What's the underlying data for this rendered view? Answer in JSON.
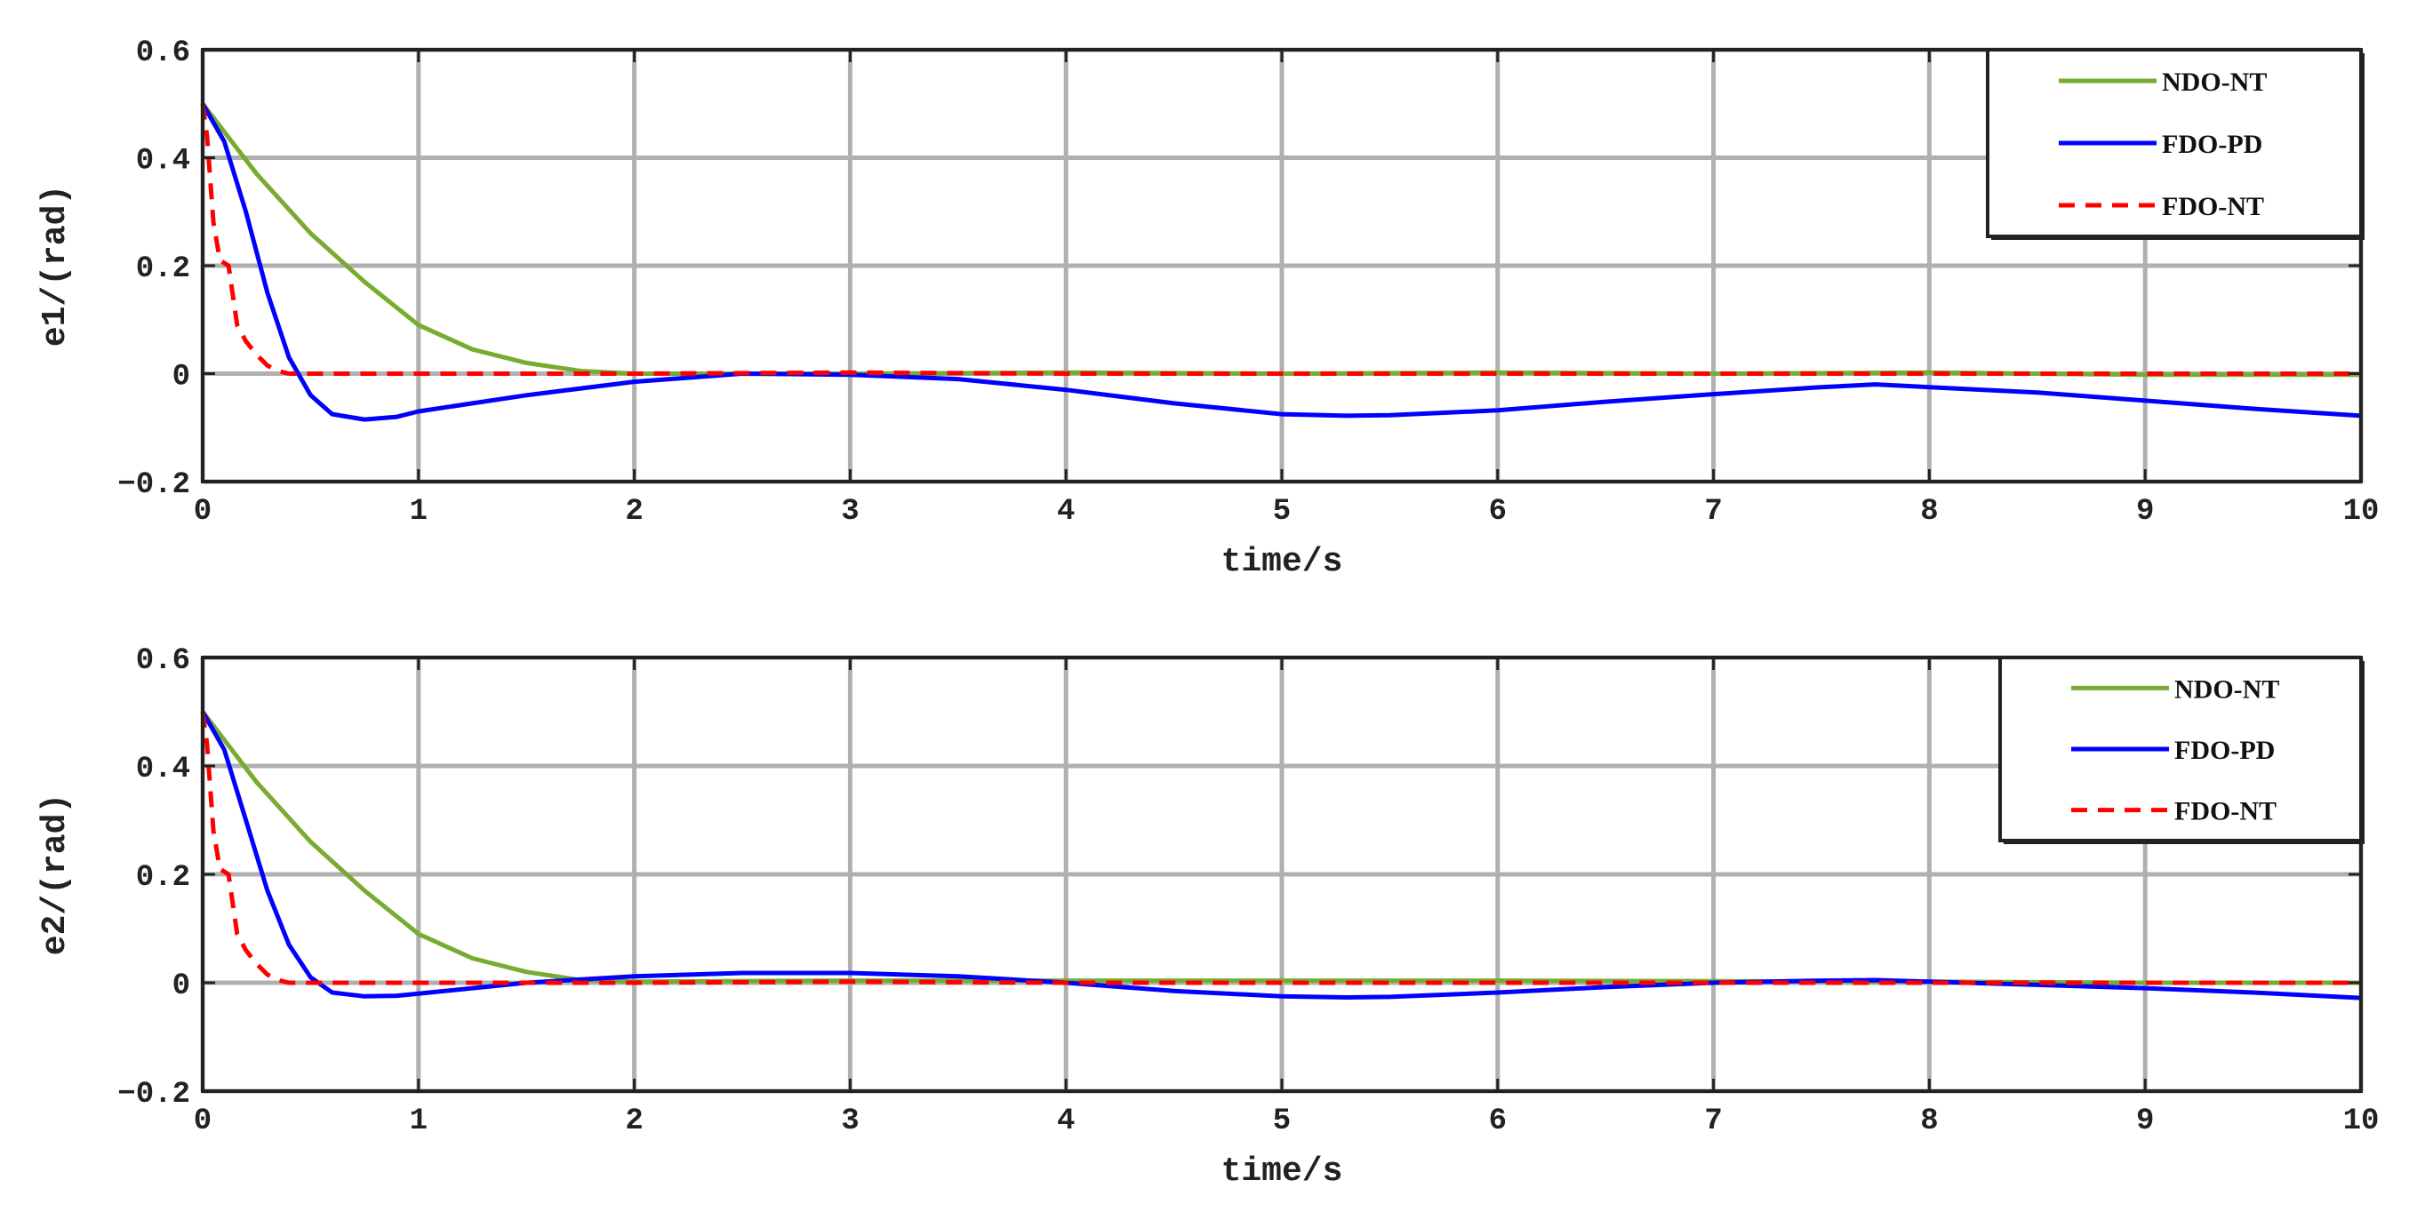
{
  "chart_data": [
    {
      "type": "line",
      "xlabel": "time/s",
      "ylabel": "e1/(rad)",
      "xlim": [
        0,
        10
      ],
      "ylim": [
        -0.2,
        0.6
      ],
      "x_ticks": [
        "0",
        "1",
        "2",
        "3",
        "4",
        "5",
        "6",
        "7",
        "8",
        "9",
        "10"
      ],
      "y_ticks": [
        "-0.2",
        "0",
        "0.2",
        "0.4",
        "0.6"
      ],
      "grid": "vertical and horizontal, gray",
      "legend_position": "top-right",
      "series": [
        {
          "name": "NDO-NT",
          "color": "#77ac30",
          "style": "solid",
          "x": [
            0,
            0.25,
            0.5,
            0.75,
            1.0,
            1.25,
            1.5,
            1.75,
            2.0,
            3.0,
            4.0,
            5.0,
            6.0,
            7.0,
            8.0,
            9.0,
            10.0
          ],
          "y": [
            0.5,
            0.37,
            0.26,
            0.17,
            0.09,
            0.045,
            0.02,
            0.005,
            0.0,
            0.0,
            0.002,
            0.0,
            0.002,
            0.0,
            0.002,
            -0.002,
            -0.002
          ]
        },
        {
          "name": "FDO-PD",
          "color": "#0000ff",
          "style": "solid",
          "x": [
            0,
            0.1,
            0.2,
            0.3,
            0.4,
            0.5,
            0.6,
            0.75,
            0.9,
            1.0,
            1.25,
            1.5,
            2.0,
            2.5,
            3.0,
            3.5,
            4.0,
            4.5,
            5.0,
            5.3,
            5.5,
            6.0,
            6.5,
            7.0,
            7.5,
            7.75,
            8.0,
            8.5,
            9.0,
            9.5,
            10.0
          ],
          "y": [
            0.5,
            0.43,
            0.3,
            0.15,
            0.03,
            -0.04,
            -0.075,
            -0.085,
            -0.08,
            -0.07,
            -0.055,
            -0.04,
            -0.015,
            0.0,
            -0.002,
            -0.01,
            -0.03,
            -0.055,
            -0.075,
            -0.078,
            -0.077,
            -0.068,
            -0.052,
            -0.038,
            -0.025,
            -0.02,
            -0.025,
            -0.035,
            -0.05,
            -0.065,
            -0.078
          ]
        },
        {
          "name": "FDO-NT",
          "color": "#ff0000",
          "style": "dashed",
          "x": [
            0,
            0.02,
            0.05,
            0.08,
            0.12,
            0.16,
            0.2,
            0.25,
            0.3,
            0.35,
            0.4,
            0.5,
            1.0,
            2.0,
            3.0,
            4.0,
            5.0,
            6.0,
            7.0,
            8.0,
            9.0,
            10.0
          ],
          "y": [
            0.5,
            0.44,
            0.28,
            0.21,
            0.2,
            0.09,
            0.06,
            0.035,
            0.015,
            0.005,
            0.0,
            0.0,
            0.0,
            0.0,
            0.002,
            0.0,
            0.0,
            0.0,
            0.0,
            0.0,
            0.0,
            0.0
          ]
        }
      ]
    },
    {
      "type": "line",
      "xlabel": "time/s",
      "ylabel": "e2/(rad)",
      "xlim": [
        0,
        10
      ],
      "ylim": [
        -0.2,
        0.6
      ],
      "x_ticks": [
        "0",
        "1",
        "2",
        "3",
        "4",
        "5",
        "6",
        "7",
        "8",
        "9",
        "10"
      ],
      "y_ticks": [
        "-0.2",
        "0",
        "0.2",
        "0.4",
        "0.6"
      ],
      "grid": "vertical and horizontal, gray",
      "legend_position": "top-right",
      "series": [
        {
          "name": "NDO-NT",
          "color": "#77ac30",
          "style": "solid",
          "x": [
            0,
            0.25,
            0.5,
            0.75,
            1.0,
            1.25,
            1.5,
            1.75,
            2.0,
            3.0,
            4.0,
            5.0,
            6.0,
            7.0,
            8.0,
            9.0,
            10.0
          ],
          "y": [
            0.5,
            0.37,
            0.26,
            0.17,
            0.09,
            0.045,
            0.02,
            0.005,
            0.002,
            0.004,
            0.004,
            0.004,
            0.004,
            0.003,
            0.002,
            0.0,
            0.0
          ]
        },
        {
          "name": "FDO-PD",
          "color": "#0000ff",
          "style": "solid",
          "x": [
            0,
            0.1,
            0.2,
            0.3,
            0.4,
            0.5,
            0.6,
            0.75,
            0.9,
            1.0,
            1.25,
            1.5,
            2.0,
            2.5,
            3.0,
            3.5,
            4.0,
            4.5,
            5.0,
            5.3,
            5.5,
            6.0,
            6.5,
            7.0,
            7.5,
            7.75,
            8.0,
            8.5,
            9.0,
            9.5,
            10.0
          ],
          "y": [
            0.5,
            0.43,
            0.3,
            0.17,
            0.07,
            0.01,
            -0.018,
            -0.025,
            -0.024,
            -0.02,
            -0.01,
            0.0,
            0.012,
            0.018,
            0.018,
            0.012,
            0.0,
            -0.015,
            -0.025,
            -0.027,
            -0.026,
            -0.018,
            -0.008,
            0.0,
            0.004,
            0.005,
            0.002,
            -0.004,
            -0.01,
            -0.018,
            -0.028
          ]
        },
        {
          "name": "FDO-NT",
          "color": "#ff0000",
          "style": "dashed",
          "x": [
            0,
            0.02,
            0.05,
            0.08,
            0.12,
            0.16,
            0.2,
            0.25,
            0.3,
            0.35,
            0.4,
            0.5,
            1.0,
            2.0,
            3.0,
            4.0,
            5.0,
            6.0,
            7.0,
            8.0,
            9.0,
            10.0
          ],
          "y": [
            0.5,
            0.44,
            0.28,
            0.21,
            0.2,
            0.09,
            0.06,
            0.035,
            0.015,
            0.005,
            0.0,
            0.0,
            0.0,
            0.0,
            0.002,
            0.0,
            0.0,
            0.0,
            0.0,
            0.0,
            0.0,
            0.0
          ]
        }
      ]
    }
  ]
}
